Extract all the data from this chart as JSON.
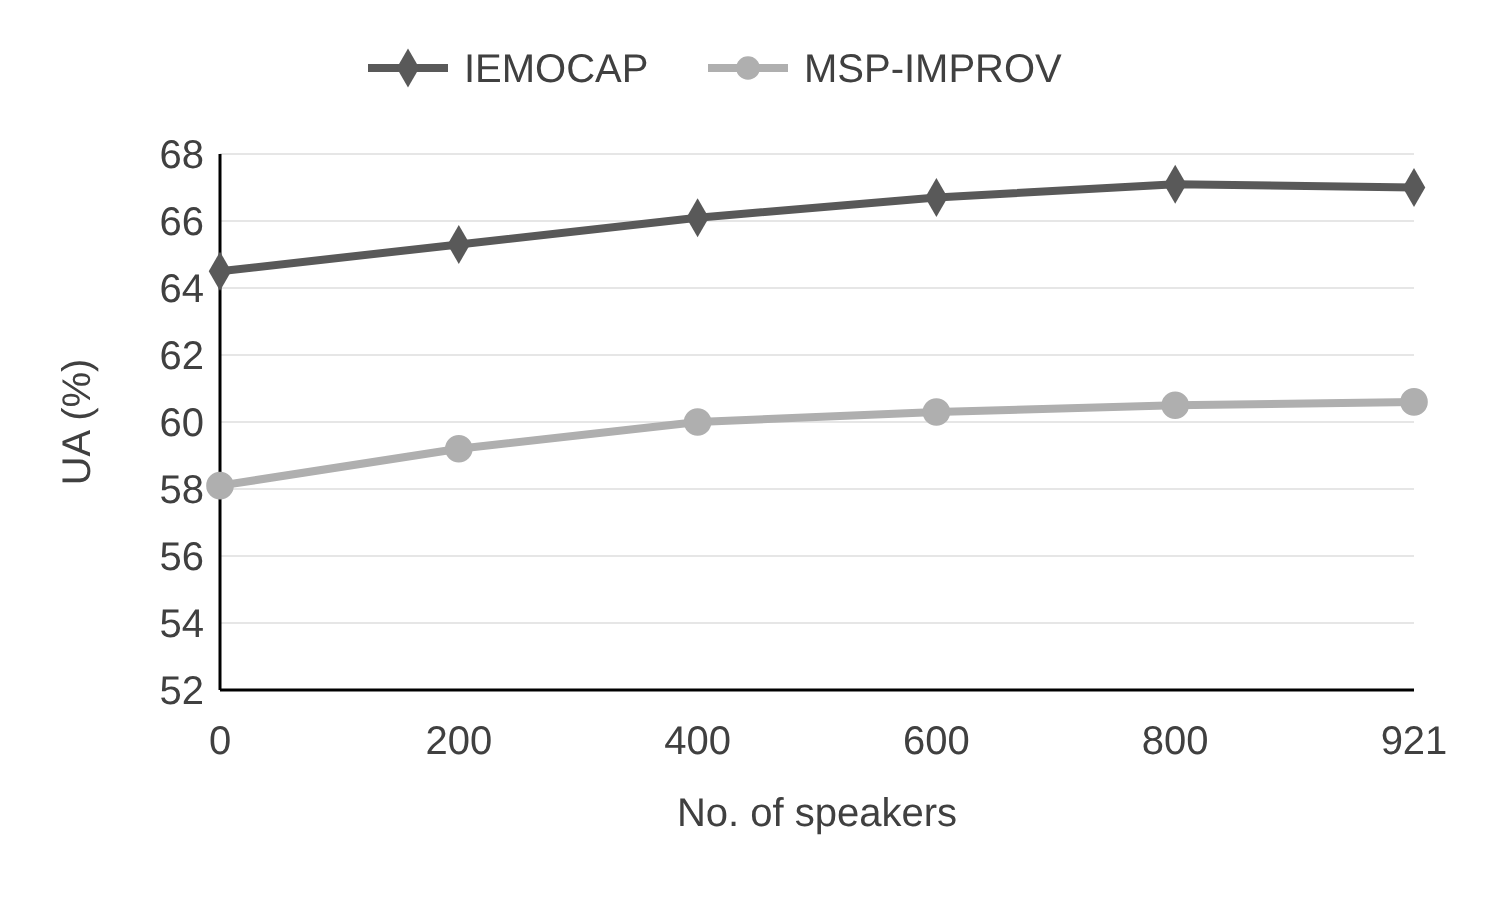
{
  "chart_data": {
    "type": "line",
    "xlabel": "No. of speakers",
    "ylabel": "UA (%)",
    "categories": [
      "0",
      "200",
      "400",
      "600",
      "800",
      "921"
    ],
    "series": [
      {
        "name": "IEMOCAP",
        "color": "#595959",
        "marker": "diamond",
        "values": [
          64.5,
          65.3,
          66.1,
          66.7,
          67.1,
          67.0
        ]
      },
      {
        "name": "MSP-IMPROV",
        "color": "#afafaf",
        "marker": "circle",
        "values": [
          58.1,
          59.2,
          60.0,
          60.3,
          60.5,
          60.6
        ]
      }
    ],
    "ylim": [
      52,
      68
    ],
    "yticks": [
      52,
      54,
      56,
      58,
      60,
      62,
      64,
      66,
      68
    ],
    "grid": "y",
    "legend": "top"
  }
}
